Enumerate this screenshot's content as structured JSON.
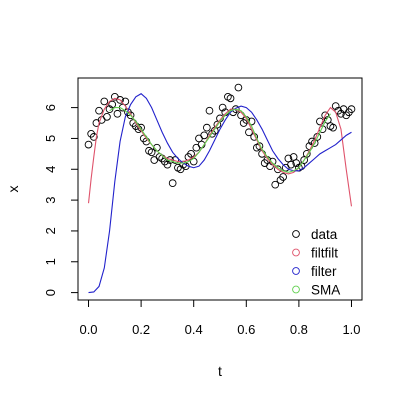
{
  "chart_data": {
    "type": "scatter",
    "title": "",
    "xlabel": "t",
    "ylabel": "x",
    "xlim": [
      -0.04,
      1.04
    ],
    "ylim": [
      -0.24,
      6.96
    ],
    "xticks": [
      0.0,
      0.2,
      0.4,
      0.6,
      0.8,
      1.0
    ],
    "xtick_labels": [
      "0.0",
      "0.2",
      "0.4",
      "0.6",
      "0.8",
      "1.0"
    ],
    "yticks": [
      0,
      1,
      2,
      3,
      4,
      5,
      6
    ],
    "ytick_labels": [
      "0",
      "1",
      "2",
      "3",
      "4",
      "5",
      "6"
    ],
    "grid": false,
    "legend": {
      "position": "bottom-right",
      "entries": [
        {
          "label": "data",
          "color": "#000000",
          "marker": "open-circle"
        },
        {
          "label": "filtfilt",
          "color": "#DF536B",
          "marker": "open-circle"
        },
        {
          "label": "filter",
          "color": "#2222CC",
          "marker": "open-circle"
        },
        {
          "label": "SMA",
          "color": "#61D04F",
          "marker": "open-circle"
        }
      ]
    },
    "series": [
      {
        "name": "data",
        "kind": "points",
        "color": "#000000",
        "x": [
          0.0,
          0.01,
          0.02,
          0.03,
          0.04,
          0.05,
          0.06,
          0.07,
          0.08,
          0.09,
          0.1,
          0.11,
          0.12,
          0.13,
          0.14,
          0.15,
          0.16,
          0.17,
          0.18,
          0.19,
          0.2,
          0.21,
          0.22,
          0.23,
          0.24,
          0.25,
          0.26,
          0.27,
          0.28,
          0.29,
          0.3,
          0.31,
          0.32,
          0.33,
          0.34,
          0.35,
          0.36,
          0.37,
          0.38,
          0.39,
          0.4,
          0.41,
          0.42,
          0.43,
          0.44,
          0.45,
          0.46,
          0.47,
          0.48,
          0.49,
          0.5,
          0.51,
          0.52,
          0.53,
          0.54,
          0.55,
          0.56,
          0.57,
          0.58,
          0.59,
          0.6,
          0.61,
          0.62,
          0.63,
          0.64,
          0.65,
          0.66,
          0.67,
          0.68,
          0.69,
          0.7,
          0.71,
          0.72,
          0.73,
          0.74,
          0.75,
          0.76,
          0.77,
          0.78,
          0.79,
          0.8,
          0.81,
          0.82,
          0.83,
          0.84,
          0.85,
          0.86,
          0.87,
          0.88,
          0.89,
          0.9,
          0.91,
          0.92,
          0.93,
          0.94,
          0.95,
          0.96,
          0.97,
          0.98,
          0.99,
          1.0
        ],
        "y": [
          4.8,
          5.15,
          5.05,
          5.5,
          5.9,
          5.6,
          6.2,
          5.7,
          5.95,
          6.1,
          6.35,
          5.8,
          6.25,
          6.0,
          6.2,
          5.85,
          5.75,
          5.5,
          5.4,
          5.3,
          5.35,
          5.0,
          4.9,
          4.6,
          4.55,
          4.3,
          4.7,
          4.4,
          4.35,
          4.25,
          4.15,
          4.3,
          3.55,
          4.3,
          4.05,
          4.0,
          4.15,
          4.1,
          4.4,
          4.5,
          4.25,
          4.7,
          5.0,
          4.8,
          5.1,
          5.35,
          5.9,
          5.15,
          5.25,
          5.45,
          5.65,
          6.0,
          5.85,
          6.35,
          6.3,
          5.85,
          5.95,
          6.65,
          5.75,
          5.5,
          5.6,
          5.2,
          5.55,
          5.05,
          4.7,
          4.75,
          4.5,
          4.2,
          4.3,
          4.1,
          4.25,
          3.5,
          4.0,
          3.65,
          3.75,
          4.05,
          4.35,
          4.15,
          4.4,
          4.2,
          4.05,
          4.1,
          4.3,
          4.5,
          4.75,
          4.9,
          4.85,
          5.05,
          5.55,
          5.3,
          5.75,
          5.6,
          5.4,
          5.35,
          6.05,
          5.9,
          5.8,
          5.95,
          5.75,
          5.85,
          5.95
        ]
      },
      {
        "name": "filtfilt",
        "kind": "line",
        "color": "#DF536B",
        "x": [
          0.0,
          0.01,
          0.02,
          0.03,
          0.04,
          0.06,
          0.08,
          0.1,
          0.12,
          0.14,
          0.16,
          0.18,
          0.2,
          0.22,
          0.24,
          0.26,
          0.28,
          0.3,
          0.32,
          0.34,
          0.36,
          0.38,
          0.4,
          0.42,
          0.44,
          0.46,
          0.48,
          0.5,
          0.52,
          0.54,
          0.56,
          0.58,
          0.6,
          0.62,
          0.64,
          0.66,
          0.68,
          0.7,
          0.72,
          0.74,
          0.76,
          0.78,
          0.8,
          0.82,
          0.84,
          0.86,
          0.88,
          0.9,
          0.92,
          0.94,
          0.96,
          0.98,
          1.0
        ],
        "y": [
          2.9,
          3.7,
          4.4,
          5.05,
          5.5,
          5.95,
          6.2,
          6.3,
          6.25,
          6.05,
          5.8,
          5.5,
          5.25,
          5.0,
          4.8,
          4.6,
          4.45,
          4.35,
          4.3,
          4.25,
          4.25,
          4.3,
          4.4,
          4.55,
          4.8,
          5.1,
          5.35,
          5.6,
          5.8,
          5.95,
          5.95,
          5.85,
          5.65,
          5.3,
          4.95,
          4.6,
          4.35,
          4.15,
          4.0,
          3.9,
          3.85,
          3.9,
          4.05,
          4.3,
          4.6,
          4.95,
          5.35,
          5.75,
          6.0,
          5.85,
          5.3,
          4.0,
          2.8
        ]
      },
      {
        "name": "filter",
        "kind": "line",
        "color": "#2222CC",
        "x": [
          0.0,
          0.02,
          0.04,
          0.06,
          0.08,
          0.1,
          0.12,
          0.14,
          0.16,
          0.18,
          0.2,
          0.22,
          0.24,
          0.26,
          0.28,
          0.3,
          0.32,
          0.34,
          0.36,
          0.38,
          0.4,
          0.42,
          0.44,
          0.46,
          0.48,
          0.5,
          0.52,
          0.54,
          0.56,
          0.58,
          0.6,
          0.62,
          0.64,
          0.66,
          0.68,
          0.7,
          0.72,
          0.74,
          0.76,
          0.78,
          0.8,
          0.82,
          0.84,
          0.86,
          0.88,
          0.9,
          0.92,
          0.94,
          0.96,
          0.98,
          1.0
        ],
        "y": [
          0.0,
          0.02,
          0.2,
          0.8,
          2.0,
          3.6,
          4.9,
          5.7,
          6.1,
          6.35,
          6.45,
          6.3,
          6.0,
          5.6,
          5.2,
          4.85,
          4.55,
          4.35,
          4.2,
          4.1,
          4.05,
          4.1,
          4.3,
          4.6,
          4.95,
          5.3,
          5.6,
          5.85,
          5.98,
          6.05,
          6.0,
          5.85,
          5.6,
          5.3,
          4.95,
          4.6,
          4.35,
          4.15,
          4.0,
          3.95,
          3.95,
          4.05,
          4.2,
          4.35,
          4.5,
          4.6,
          4.7,
          4.8,
          4.95,
          5.1,
          5.2
        ]
      },
      {
        "name": "SMA",
        "kind": "line",
        "color": "#61D04F",
        "x": [
          0.08,
          0.1,
          0.12,
          0.14,
          0.16,
          0.18,
          0.2,
          0.22,
          0.24,
          0.26,
          0.28,
          0.3,
          0.32,
          0.34,
          0.36,
          0.38,
          0.4,
          0.42,
          0.44,
          0.46,
          0.48,
          0.5,
          0.52,
          0.54,
          0.56,
          0.58,
          0.6,
          0.62,
          0.64,
          0.66,
          0.68,
          0.7,
          0.72,
          0.74,
          0.76,
          0.78,
          0.8,
          0.82,
          0.84,
          0.86,
          0.88,
          0.9,
          0.92
        ],
        "y": [
          5.9,
          6.0,
          6.0,
          5.9,
          5.75,
          5.55,
          5.3,
          5.05,
          4.8,
          4.6,
          4.45,
          4.3,
          4.25,
          4.2,
          4.2,
          4.25,
          4.35,
          4.55,
          4.8,
          5.05,
          5.3,
          5.55,
          5.75,
          5.9,
          5.95,
          5.9,
          5.7,
          5.4,
          5.0,
          4.65,
          4.4,
          4.2,
          4.05,
          3.95,
          3.9,
          3.95,
          4.05,
          4.3,
          4.55,
          4.85,
          5.2,
          5.55,
          5.8
        ]
      }
    ]
  }
}
